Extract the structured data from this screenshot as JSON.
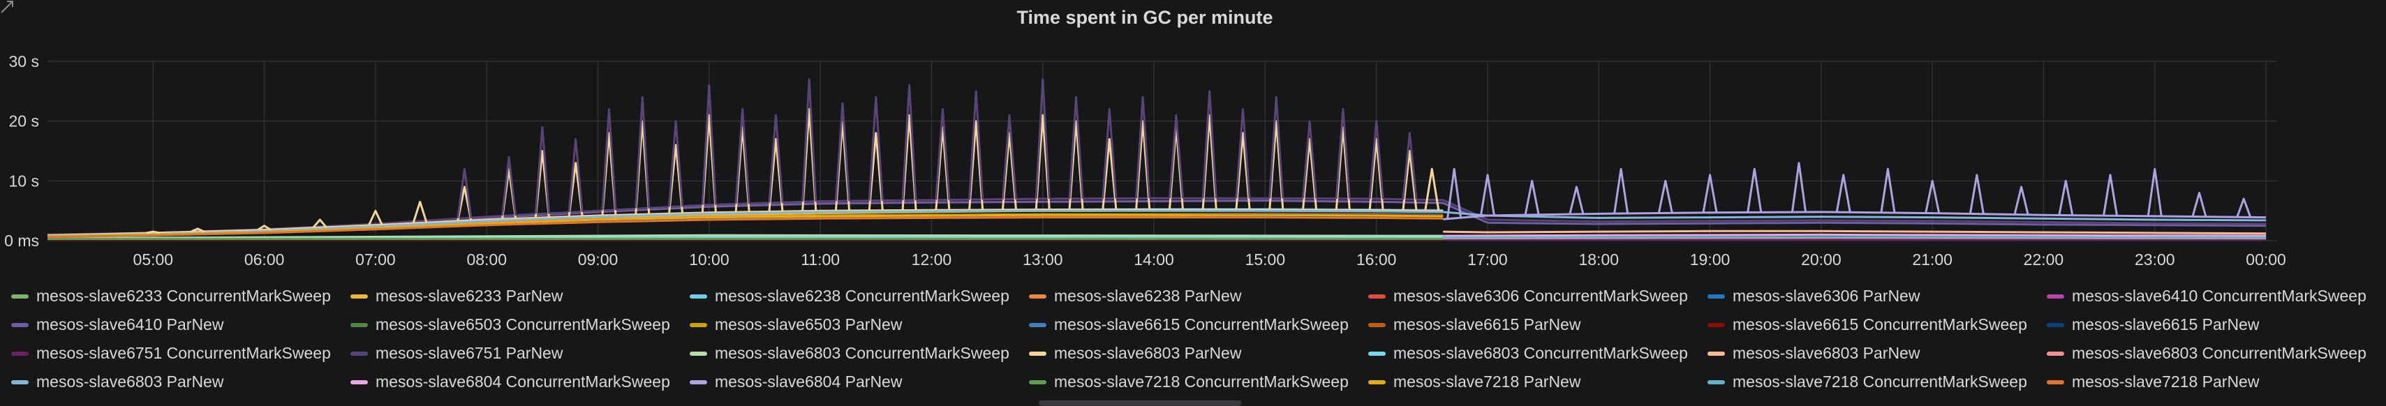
{
  "chart_data": {
    "type": "line",
    "title": "Time spent in GC per minute",
    "y_ticks": [
      "0 ms",
      "10 s",
      "20 s",
      "30 s"
    ],
    "y_tick_values": [
      0,
      10,
      20,
      30
    ],
    "ylim": [
      0,
      30
    ],
    "x_ticks": [
      "05:00",
      "06:00",
      "07:00",
      "08:00",
      "09:00",
      "10:00",
      "11:00",
      "12:00",
      "13:00",
      "14:00",
      "15:00",
      "16:00",
      "17:00",
      "18:00",
      "19:00",
      "20:00",
      "21:00",
      "22:00",
      "23:00",
      "00:00"
    ],
    "x_tick_values": [
      5,
      6,
      7,
      8,
      9,
      10,
      11,
      12,
      13,
      14,
      15,
      16,
      17,
      18,
      19,
      20,
      21,
      22,
      23,
      24
    ],
    "xlim": [
      4.05,
      24.1
    ],
    "grid": true,
    "legend_position": "bottom",
    "series": [
      {
        "name": "mesos-slave6233 ConcurrentMarkSweep",
        "color": "#7eb26d",
        "x": [
          4.05,
          8,
          16.6
        ],
        "y": [
          0.3,
          0.4,
          0.4
        ]
      },
      {
        "name": "mesos-slave6233 ParNew",
        "color": "#eab839",
        "x": [
          4.05,
          4.5,
          5,
          5.5,
          6,
          6.5,
          7,
          7.5,
          8,
          8.5,
          9,
          9.5,
          10,
          10.5,
          11,
          11.5,
          12,
          12.5,
          13,
          13.5,
          14,
          14.5,
          15,
          15.5,
          16,
          16.6
        ],
        "y": [
          0.8,
          0.9,
          1.1,
          1.4,
          1.8,
          2.2,
          2.6,
          3,
          3.3,
          3.6,
          3.9,
          4.1,
          4.3,
          4.4,
          4.6,
          4.7,
          4.8,
          4.9,
          5,
          5,
          5.1,
          5.1,
          5.2,
          5.2,
          5.1,
          5
        ]
      },
      {
        "name": "mesos-slave6238 ConcurrentMarkSweep",
        "color": "#6ed0e0",
        "x": [
          4.05,
          10,
          16.6
        ],
        "y": [
          0.4,
          0.7,
          0.6
        ]
      },
      {
        "name": "mesos-slave6238 ParNew",
        "color": "#ef843c",
        "x": [
          4.05,
          5,
          6,
          7,
          8,
          9,
          10,
          11,
          12,
          13,
          14,
          15,
          16,
          16.6
        ],
        "y": [
          0.6,
          1,
          1.5,
          2.3,
          3.1,
          3.6,
          4,
          4.2,
          4.3,
          4.4,
          4.4,
          4.5,
          4.4,
          4.3
        ]
      },
      {
        "name": "mesos-slave6306 ConcurrentMarkSweep",
        "color": "#e24d42",
        "x": [
          4.05,
          16.6
        ],
        "y": [
          0.3,
          0.3
        ]
      },
      {
        "name": "mesos-slave6306 ParNew",
        "color": "#1f78c1",
        "x": [
          4.05,
          5,
          6,
          7,
          8,
          9,
          10,
          11,
          12,
          13,
          14,
          15,
          16,
          16.6
        ],
        "y": [
          0.7,
          1.1,
          1.6,
          2.4,
          3.3,
          4,
          4.6,
          4.9,
          5.1,
          5.2,
          5.3,
          5.3,
          5.2,
          5.1
        ]
      },
      {
        "name": "mesos-slave6410 ConcurrentMarkSweep",
        "color": "#ba43a9",
        "x": [
          16.6,
          18,
          20,
          22,
          24
        ],
        "y": [
          0.3,
          0.4,
          0.4,
          0.4,
          0.3
        ]
      },
      {
        "name": "mesos-slave6410 ParNew",
        "color": "#705da0",
        "x": [
          4.05,
          5,
          6,
          7,
          8,
          9,
          10,
          11,
          12,
          13,
          14,
          15,
          16,
          16.6,
          17,
          18,
          19,
          20,
          21,
          22,
          23,
          24
        ],
        "y": [
          0.9,
          1.2,
          1.8,
          2.7,
          3.8,
          4.8,
          5.7,
          6.2,
          6.4,
          6.5,
          6.6,
          6.7,
          6.5,
          6.3,
          3,
          2.8,
          2.9,
          3,
          2.9,
          2.7,
          2.6,
          2.5
        ]
      },
      {
        "name": "mesos-slave6503 ConcurrentMarkSweep",
        "color": "#508642",
        "x": [
          4.05,
          16.6
        ],
        "y": [
          0.3,
          0.3
        ]
      },
      {
        "name": "mesos-slave6503 ParNew",
        "color": "#cca300",
        "x": [
          4.05,
          5,
          6,
          7,
          8,
          9,
          10,
          11,
          12,
          13,
          14,
          15,
          16,
          16.6
        ],
        "y": [
          0.7,
          1,
          1.4,
          2,
          2.8,
          3.4,
          3.9,
          4.2,
          4.3,
          4.4,
          4.4,
          4.4,
          4.3,
          4.2
        ]
      },
      {
        "name": "mesos-slave6615 ConcurrentMarkSweep",
        "color": "#447ebc",
        "x": [
          4.05,
          16.6
        ],
        "y": [
          0.5,
          0.5
        ]
      },
      {
        "name": "mesos-slave6615 ParNew",
        "color": "#c15c17",
        "x": [
          4.05,
          5,
          6,
          7,
          8,
          9,
          10,
          11,
          12,
          13,
          14,
          15,
          16,
          16.6
        ],
        "y": [
          0.6,
          0.9,
          1.3,
          1.9,
          2.6,
          3.2,
          3.7,
          4,
          4.1,
          4.2,
          4.2,
          4.3,
          4.2,
          4.1
        ]
      },
      {
        "name": "mesos-slave6615 ConcurrentMarkSweep",
        "color": "#890f02",
        "x": [
          4.05,
          16.6
        ],
        "y": [
          0.2,
          0.2
        ]
      },
      {
        "name": "mesos-slave6615 ParNew",
        "color": "#0a437c",
        "x": [
          4.05,
          5,
          6,
          7,
          8,
          9,
          10,
          11,
          12,
          13,
          14,
          15,
          16,
          16.6
        ],
        "y": [
          0.6,
          0.9,
          1.3,
          2,
          2.7,
          3.3,
          3.8,
          4.1,
          4.2,
          4.3,
          4.3,
          4.4,
          4.3,
          4.2
        ]
      },
      {
        "name": "mesos-slave6751 ConcurrentMarkSweep",
        "color": "#6d1f62",
        "x": [
          16.6,
          18,
          20,
          22,
          24
        ],
        "y": [
          0.2,
          0.2,
          0.2,
          0.2,
          0.2
        ]
      },
      {
        "name": "mesos-slave6751 ParNew",
        "color": "#584477",
        "x": [
          4.05,
          5,
          6,
          7,
          8,
          9,
          10,
          11,
          12,
          13,
          14,
          15,
          16,
          16.6,
          17,
          18,
          19,
          20,
          21,
          22,
          23,
          24
        ],
        "y": [
          1,
          1.3,
          1.9,
          2.8,
          4,
          5,
          6,
          6.6,
          6.8,
          7,
          7.1,
          7.1,
          7,
          6.8,
          3.5,
          3.2,
          3.3,
          3.4,
          3.3,
          3.1,
          2.9,
          2.8
        ]
      },
      {
        "name": "mesos-slave6803 ConcurrentMarkSweep",
        "color": "#b7dbab",
        "x": [
          4.05,
          10,
          16.6
        ],
        "y": [
          0.4,
          0.9,
          0.8
        ]
      },
      {
        "name": "mesos-slave6803 ParNew",
        "color": "#f4d598",
        "x": [
          4.05,
          5,
          6,
          7,
          8,
          9,
          10,
          11,
          12,
          13,
          14,
          15,
          16,
          16.6
        ],
        "y": [
          0.9,
          1.3,
          1.8,
          2.6,
          3.5,
          4.2,
          4.7,
          5,
          5.1,
          5.2,
          5.2,
          5.2,
          5.1,
          5
        ]
      },
      {
        "name": "mesos-slave6803 ConcurrentMarkSweep",
        "color": "#70dbed",
        "x": [
          4.05,
          10,
          16.6
        ],
        "y": [
          0.3,
          0.5,
          0.5
        ]
      },
      {
        "name": "mesos-slave6803 ParNew",
        "color": "#f9ba8f",
        "x": [
          16.6,
          17,
          18,
          19,
          20,
          21,
          22,
          23,
          24
        ],
        "y": [
          1.5,
          1.4,
          1.5,
          1.6,
          1.6,
          1.5,
          1.4,
          1.3,
          1.2
        ]
      },
      {
        "name": "mesos-slave6803 ConcurrentMarkSweep",
        "color": "#f29191",
        "x": [
          16.6,
          20,
          24
        ],
        "y": [
          0.4,
          0.5,
          0.4
        ]
      },
      {
        "name": "mesos-slave6803 ParNew",
        "color": "#82b5d8",
        "x": [
          4.05,
          5,
          6,
          7,
          8,
          9,
          10,
          11,
          12,
          13,
          14,
          15,
          16,
          16.6,
          17,
          18,
          19,
          20,
          21,
          22,
          23,
          24
        ],
        "y": [
          0.8,
          1.1,
          1.6,
          2.4,
          3.3,
          4,
          4.5,
          4.8,
          4.9,
          5,
          5,
          5,
          4.9,
          4.8,
          4.2,
          3.8,
          3.9,
          4,
          3.9,
          3.7,
          3.5,
          3.4
        ]
      },
      {
        "name": "mesos-slave6804 ConcurrentMarkSweep",
        "color": "#e5a8e2",
        "x": [
          16.6,
          18,
          20,
          22,
          24
        ],
        "y": [
          0.8,
          0.9,
          1,
          0.9,
          0.8
        ]
      },
      {
        "name": "mesos-slave6804 ParNew",
        "color": "#aea2e0",
        "x": [
          16.6,
          17,
          18,
          19,
          20,
          21,
          22,
          23,
          24
        ],
        "y": [
          3.6,
          4.2,
          4.5,
          4.7,
          4.8,
          4.6,
          4.3,
          4.1,
          3.9
        ]
      },
      {
        "name": "mesos-slave7218 ConcurrentMarkSweep",
        "color": "#629e51",
        "x": [
          4.05,
          16.6
        ],
        "y": [
          0.3,
          0.3
        ]
      },
      {
        "name": "mesos-slave7218 ParNew",
        "color": "#e5ac0e",
        "x": [
          4.05,
          5,
          6,
          7,
          8,
          9,
          10,
          11,
          12,
          13,
          14,
          15,
          16,
          16.6
        ],
        "y": [
          0.7,
          1,
          1.4,
          2.1,
          2.9,
          3.5,
          3.9,
          4.1,
          4.2,
          4.3,
          4.3,
          4.3,
          4.2,
          4.1
        ]
      },
      {
        "name": "mesos-slave7218 ConcurrentMarkSweep",
        "color": "#64b0c8",
        "x": [
          16.6,
          20,
          24
        ],
        "y": [
          0.5,
          0.6,
          0.5
        ]
      },
      {
        "name": "mesos-slave7218 ParNew",
        "color": "#e0752d",
        "x": [
          4.05,
          5,
          6,
          7,
          8,
          9,
          10,
          11,
          12,
          13,
          14,
          15,
          16,
          16.6
        ],
        "y": [
          0.6,
          0.9,
          1.3,
          1.9,
          2.6,
          3.1,
          3.5,
          3.7,
          3.8,
          3.9,
          3.9,
          3.9,
          3.8,
          3.7
        ]
      }
    ],
    "peaks": [
      {
        "series_index": 17,
        "x": [
          5,
          5.4,
          6,
          6.5,
          7,
          7.4,
          7.8,
          8.2,
          8.5,
          8.8,
          9.1,
          9.4,
          9.7,
          10,
          10.3,
          10.6,
          10.9,
          11.2,
          11.5,
          11.8,
          12.1,
          12.4,
          12.7,
          13,
          13.3,
          13.6,
          13.9,
          14.2,
          14.5,
          14.8,
          15.1,
          15.4,
          15.7,
          16,
          16.3,
          16.5
        ],
        "y": [
          1.5,
          2,
          2.5,
          3.5,
          5,
          6.5,
          9,
          12,
          15,
          13,
          18,
          20,
          16,
          21,
          19,
          17,
          22,
          20,
          18,
          21,
          19,
          20,
          18,
          21,
          20,
          17,
          20,
          19,
          21,
          18,
          20,
          17,
          19,
          17,
          15,
          12
        ]
      },
      {
        "series_index": 15,
        "x": [
          7.8,
          8.2,
          8.5,
          8.8,
          9.1,
          9.4,
          9.7,
          10,
          10.3,
          10.6,
          10.9,
          11.2,
          11.5,
          11.8,
          12.1,
          12.4,
          12.7,
          13,
          13.3,
          13.6,
          13.9,
          14.2,
          14.5,
          14.8,
          15.1,
          15.4,
          15.7,
          16,
          16.3
        ],
        "y": [
          12,
          14,
          19,
          17,
          22,
          24,
          20,
          26,
          22,
          21,
          27,
          23,
          24,
          26,
          22,
          25,
          21,
          27,
          24,
          22,
          24,
          21,
          25,
          22,
          24,
          20,
          22,
          20,
          18
        ]
      },
      {
        "series_index": 23,
        "x": [
          16.7,
          17,
          17.4,
          17.8,
          18.2,
          18.6,
          19,
          19.4,
          19.8,
          20.2,
          20.6,
          21,
          21.4,
          21.8,
          22.2,
          22.6,
          23,
          23.4,
          23.8
        ],
        "y": [
          12,
          11,
          10,
          9,
          12,
          10,
          11,
          12,
          13,
          11,
          12,
          10,
          11,
          9,
          10,
          11,
          12,
          8,
          7
        ]
      }
    ]
  }
}
